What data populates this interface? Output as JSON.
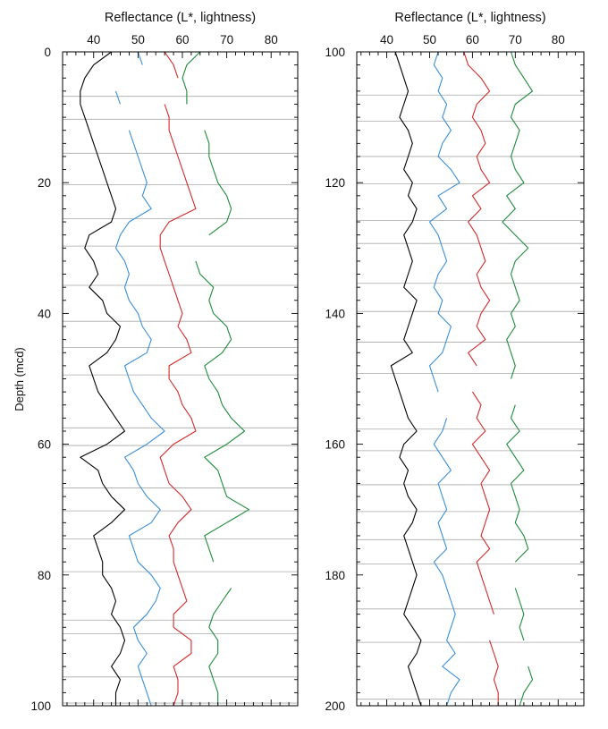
{
  "chart_data": {
    "type": "line",
    "y_axis_title": "Depth (mcd)",
    "panels": [
      {
        "x_axis_title": "Reflectance (L*, lightness)",
        "xlim": [
          33,
          86
        ],
        "xticks": [
          40,
          50,
          60,
          70,
          80
        ],
        "x_minor_step": 2,
        "ylim": [
          0,
          100
        ],
        "yticks": [
          0,
          20,
          40,
          60,
          80,
          100
        ],
        "y_minor_step": 2,
        "section_boundaries": [
          6.8,
          10.3,
          15.5,
          20.3,
          25.5,
          29.7,
          35.7,
          41.2,
          45.2,
          49.4,
          57.5,
          60.2,
          66.7,
          70.2,
          74.5,
          79.5,
          86.9,
          89.0,
          95.6,
          99.6
        ],
        "series": [
          {
            "color": "#000000",
            "offset": 0,
            "depth": [
              0,
              2,
              4,
              6,
              8,
              10,
              12,
              14,
              16,
              18,
              20,
              22,
              24,
              26,
              28,
              30,
              32,
              34,
              36,
              38,
              40,
              42,
              44,
              46,
              48,
              50,
              52,
              54,
              56,
              58,
              60,
              62,
              64,
              66,
              68,
              70,
              72,
              74,
              76,
              78,
              80,
              82,
              84,
              86,
              88,
              90,
              92,
              94,
              96,
              98,
              100
            ],
            "L": [
              44,
              40,
              38,
              37,
              37,
              38,
              39,
              40,
              41,
              42,
              43,
              44,
              45,
              44,
              39,
              38,
              40,
              41,
              39,
              42,
              43,
              46,
              45,
              43,
              39,
              40,
              41,
              43,
              45,
              47,
              43,
              37,
              41,
              42,
              44,
              47,
              44,
              40,
              41,
              42,
              42,
              44,
              45,
              44,
              46,
              47,
              46,
              44,
              46,
              45,
              45
            ]
          },
          {
            "color": "#3a8fd8",
            "offset": 0,
            "depth": [
              0,
              2,
              4,
              6,
              8,
              10,
              12,
              14,
              16,
              18,
              20,
              22,
              24,
              26,
              28,
              30,
              32,
              34,
              36,
              38,
              40,
              42,
              44,
              46,
              48,
              50,
              52,
              54,
              56,
              58,
              60,
              62,
              64,
              66,
              68,
              70,
              72,
              74,
              76,
              78,
              80,
              82,
              84,
              86,
              88,
              90,
              92,
              94,
              96,
              98,
              100
            ],
            "L": [
              50,
              51,
              null,
              45,
              46,
              null,
              48,
              49,
              50,
              51,
              52,
              51,
              53,
              48,
              46,
              45,
              47,
              48,
              47,
              48,
              50,
              51,
              53,
              52,
              47,
              48,
              49,
              51,
              53,
              56,
              52,
              47,
              49,
              50,
              52,
              55,
              53,
              48,
              49,
              50,
              53,
              55,
              54,
              52,
              49,
              50,
              52,
              50,
              51,
              52,
              53
            ]
          },
          {
            "color": "#d42a2a",
            "offset": 0,
            "depth": [
              0,
              2,
              4,
              6,
              8,
              10,
              12,
              14,
              16,
              18,
              20,
              22,
              24,
              26,
              28,
              30,
              32,
              34,
              36,
              38,
              40,
              42,
              44,
              46,
              48,
              50,
              52,
              54,
              56,
              58,
              60,
              62,
              64,
              66,
              68,
              70,
              72,
              74,
              76,
              78,
              80,
              82,
              84,
              86,
              88,
              90,
              92,
              94,
              96,
              98,
              100
            ],
            "L": [
              56,
              58,
              59,
              null,
              56,
              57,
              57,
              58,
              59,
              60,
              61,
              62,
              63,
              57,
              55,
              55,
              56,
              57,
              58,
              59,
              60,
              59,
              61,
              62,
              57,
              57,
              59,
              60,
              62,
              63,
              58,
              55,
              56,
              57,
              60,
              62,
              59,
              57,
              58,
              58,
              59,
              60,
              61,
              58,
              58,
              62,
              62,
              58,
              59,
              59,
              58
            ]
          },
          {
            "color": "#1e8c3a",
            "offset": 0,
            "depth": [
              0,
              2,
              4,
              6,
              8,
              10,
              12,
              14,
              16,
              18,
              20,
              22,
              24,
              26,
              28,
              30,
              32,
              34,
              36,
              38,
              40,
              42,
              44,
              46,
              48,
              50,
              52,
              54,
              56,
              58,
              60,
              62,
              64,
              66,
              68,
              70,
              72,
              74,
              76,
              78,
              80,
              82,
              84,
              86,
              88,
              90,
              92,
              94,
              96,
              98,
              100
            ],
            "L": [
              64,
              61,
              60,
              61,
              61,
              null,
              65,
              66,
              66,
              67,
              68,
              70,
              71,
              70,
              66,
              null,
              63,
              64,
              67,
              66,
              67,
              70,
              71,
              69,
              65,
              66,
              68,
              69,
              71,
              74,
              70,
              65,
              68,
              69,
              70,
              75,
              70,
              65,
              66,
              67,
              null,
              71,
              69,
              67,
              66,
              68,
              68,
              66,
              67,
              68,
              68
            ]
          }
        ]
      },
      {
        "x_axis_title": "Reflectance (L*, lightness)",
        "xlim": [
          33,
          86
        ],
        "xticks": [
          40,
          50,
          60,
          70,
          80
        ],
        "x_minor_step": 2,
        "ylim": [
          100,
          200
        ],
        "yticks": [
          100,
          120,
          140,
          160,
          180,
          200
        ],
        "y_minor_step": 2,
        "section_boundaries": [
          106.6,
          110.6,
          116.0,
          120.2,
          125.8,
          129.3,
          135.4,
          139.7,
          144.4,
          149.2,
          157.7,
          161.0,
          166.2,
          170.3,
          174.6,
          178.3,
          185.2,
          190.3,
          199.0
        ],
        "series": [
          {
            "color": "#000000",
            "offset": 0,
            "depth": [
              100,
              102,
              104,
              106,
              108,
              110,
              112,
              114,
              116,
              118,
              120,
              122,
              124,
              126,
              128,
              130,
              132,
              134,
              136,
              138,
              140,
              142,
              144,
              146,
              148,
              150,
              152,
              154,
              156,
              158,
              160,
              162,
              164,
              166,
              168,
              170,
              172,
              174,
              176,
              178,
              180,
              182,
              184,
              186,
              188,
              190,
              192,
              194,
              196,
              198,
              200
            ],
            "L": [
              42,
              43,
              44,
              45,
              44,
              43,
              45,
              46,
              45,
              44,
              46,
              45,
              47,
              46,
              44,
              45,
              46,
              45,
              44,
              47,
              46,
              45,
              44,
              46,
              41,
              42,
              43,
              44,
              45,
              47,
              44,
              43,
              45,
              44,
              45,
              47,
              46,
              44,
              45,
              46,
              47,
              46,
              45,
              44,
              46,
              48,
              47,
              45,
              46,
              47,
              48
            ]
          },
          {
            "color": "#3a8fd8",
            "offset": 0,
            "depth": [
              100,
              102,
              104,
              106,
              108,
              110,
              112,
              114,
              116,
              118,
              120,
              122,
              124,
              126,
              128,
              130,
              132,
              134,
              136,
              138,
              140,
              142,
              144,
              146,
              148,
              150,
              152,
              154,
              156,
              158,
              160,
              162,
              164,
              166,
              168,
              170,
              172,
              174,
              176,
              178,
              180,
              182,
              184,
              186,
              188,
              190,
              192,
              194,
              196,
              198,
              200
            ],
            "L": [
              52,
              51,
              53,
              52,
              54,
              53,
              55,
              53,
              52,
              55,
              57,
              52,
              54,
              50,
              52,
              53,
              54,
              52,
              51,
              53,
              52,
              55,
              54,
              53,
              50,
              51,
              52,
              null,
              54,
              53,
              51,
              53,
              55,
              52,
              53,
              54,
              52,
              53,
              54,
              51,
              53,
              54,
              55,
              56,
              55,
              54,
              56,
              53,
              57,
              55,
              54
            ]
          },
          {
            "color": "#d42a2a",
            "offset": 0,
            "depth": [
              100,
              102,
              104,
              106,
              108,
              110,
              112,
              114,
              116,
              118,
              120,
              122,
              124,
              126,
              128,
              130,
              132,
              134,
              136,
              138,
              140,
              142,
              144,
              146,
              148,
              150,
              152,
              154,
              156,
              158,
              160,
              162,
              164,
              166,
              168,
              170,
              172,
              174,
              176,
              178,
              180,
              182,
              184,
              186,
              188,
              190,
              192,
              194,
              196,
              198,
              200
            ],
            "L": [
              58,
              59,
              62,
              64,
              61,
              60,
              62,
              63,
              61,
              62,
              64,
              60,
              62,
              59,
              61,
              62,
              63,
              61,
              62,
              64,
              62,
              61,
              63,
              59,
              61,
              null,
              60,
              62,
              61,
              63,
              60,
              62,
              64,
              62,
              63,
              64,
              63,
              62,
              64,
              61,
              62,
              63,
              64,
              65,
              null,
              64,
              65,
              66,
              65,
              66,
              66
            ]
          },
          {
            "color": "#1e8c3a",
            "offset": 0,
            "depth": [
              100,
              102,
              104,
              106,
              108,
              110,
              112,
              114,
              116,
              118,
              120,
              122,
              124,
              126,
              128,
              130,
              132,
              134,
              136,
              138,
              140,
              142,
              144,
              146,
              148,
              150,
              152,
              154,
              156,
              158,
              160,
              162,
              164,
              166,
              168,
              170,
              172,
              174,
              176,
              178,
              180,
              182,
              184,
              186,
              188,
              190,
              192,
              194,
              196,
              198,
              200
            ],
            "L": [
              69,
              70,
              72,
              74,
              70,
              69,
              71,
              70,
              69,
              70,
              72,
              68,
              70,
              67,
              70,
              73,
              70,
              69,
              70,
              71,
              69,
              70,
              68,
              69,
              70,
              69,
              null,
              70,
              69,
              71,
              68,
              70,
              72,
              69,
              70,
              71,
              70,
              72,
              73,
              70,
              null,
              70,
              71,
              72,
              71,
              72,
              null,
              73,
              74,
              72,
              71
            ]
          }
        ]
      }
    ]
  }
}
